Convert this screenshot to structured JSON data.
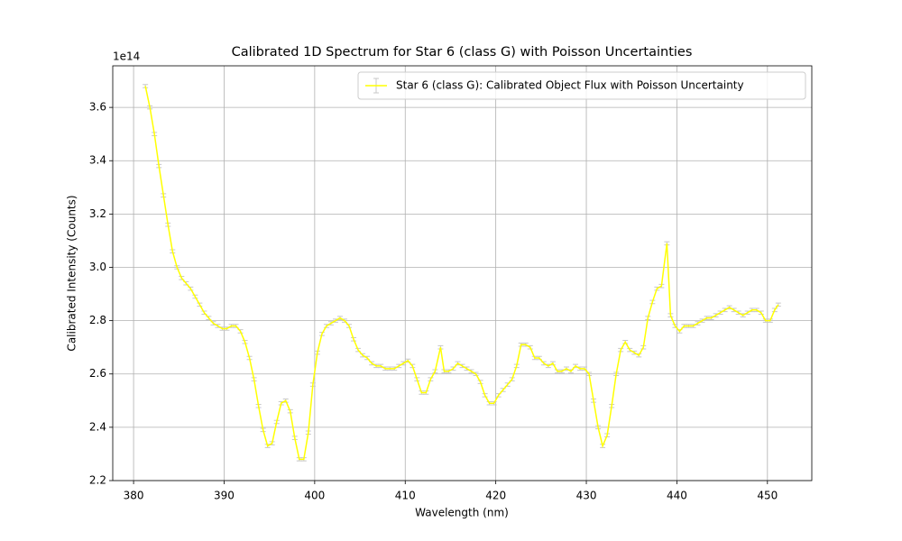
{
  "chart_data": {
    "type": "line",
    "title": "Calibrated 1D Spectrum for Star 6 (class G) with Poisson Uncertainties",
    "xlabel": "Wavelength (nm)",
    "ylabel": "Calibrated Intensity (Counts)",
    "offset_text": "1e14",
    "x": [
      381.3,
      381.8,
      382.3,
      382.8,
      383.3,
      383.8,
      384.3,
      384.8,
      385.3,
      385.8,
      386.3,
      386.8,
      387.3,
      387.8,
      388.3,
      388.8,
      389.3,
      389.8,
      390.3,
      390.8,
      391.3,
      391.8,
      392.3,
      392.8,
      393.3,
      393.8,
      394.3,
      394.8,
      395.3,
      395.8,
      396.3,
      396.8,
      397.3,
      397.8,
      398.3,
      398.8,
      399.3,
      399.8,
      400.3,
      400.8,
      401.3,
      401.8,
      402.3,
      402.8,
      403.3,
      403.8,
      404.3,
      404.8,
      405.3,
      405.8,
      406.3,
      406.8,
      407.3,
      407.8,
      408.3,
      408.8,
      409.3,
      409.8,
      410.3,
      410.8,
      411.3,
      411.8,
      412.3,
      412.8,
      413.3,
      413.9,
      414.3,
      414.8,
      415.3,
      415.8,
      416.3,
      416.8,
      417.3,
      417.8,
      418.3,
      418.8,
      419.3,
      419.8,
      420.3,
      420.8,
      421.3,
      421.8,
      422.3,
      422.8,
      423.3,
      423.8,
      424.3,
      424.8,
      425.3,
      425.8,
      426.3,
      426.8,
      427.3,
      427.8,
      428.3,
      428.8,
      429.3,
      429.8,
      430.3,
      430.8,
      431.3,
      431.8,
      432.3,
      432.8,
      433.3,
      433.8,
      434.3,
      434.8,
      435.3,
      435.8,
      436.3,
      436.8,
      437.3,
      437.8,
      438.3,
      438.9,
      439.3,
      439.8,
      440.3,
      440.8,
      441.3,
      441.8,
      442.3,
      442.8,
      443.3,
      443.8,
      444.3,
      444.8,
      445.3,
      445.8,
      446.3,
      446.8,
      447.3,
      447.8,
      448.3,
      448.8,
      449.3,
      449.8,
      450.3,
      450.8,
      451.2
    ],
    "series": [
      {
        "name": "Star 6 (class G): Calibrated Object Flux with Poisson Uncertainty",
        "color": "#ffff00",
        "error_color": "#c8c8c8",
        "values": [
          3.68,
          3.6,
          3.5,
          3.38,
          3.27,
          3.16,
          3.06,
          3.0,
          2.96,
          2.94,
          2.92,
          2.89,
          2.86,
          2.83,
          2.81,
          2.79,
          2.78,
          2.77,
          2.77,
          2.78,
          2.78,
          2.76,
          2.72,
          2.66,
          2.58,
          2.48,
          2.39,
          2.33,
          2.34,
          2.42,
          2.49,
          2.5,
          2.46,
          2.36,
          2.28,
          2.28,
          2.38,
          2.56,
          2.68,
          2.75,
          2.78,
          2.79,
          2.8,
          2.81,
          2.8,
          2.78,
          2.73,
          2.69,
          2.67,
          2.66,
          2.64,
          2.63,
          2.63,
          2.62,
          2.62,
          2.62,
          2.63,
          2.64,
          2.65,
          2.63,
          2.58,
          2.53,
          2.53,
          2.58,
          2.61,
          2.7,
          2.61,
          2.61,
          2.62,
          2.64,
          2.63,
          2.62,
          2.61,
          2.6,
          2.57,
          2.52,
          2.49,
          2.49,
          2.52,
          2.54,
          2.56,
          2.58,
          2.63,
          2.71,
          2.71,
          2.7,
          2.66,
          2.66,
          2.64,
          2.63,
          2.64,
          2.61,
          2.61,
          2.62,
          2.61,
          2.63,
          2.62,
          2.62,
          2.6,
          2.5,
          2.4,
          2.33,
          2.37,
          2.48,
          2.6,
          2.69,
          2.72,
          2.69,
          2.68,
          2.67,
          2.7,
          2.81,
          2.87,
          2.92,
          2.93,
          3.09,
          2.82,
          2.78,
          2.76,
          2.78,
          2.78,
          2.78,
          2.79,
          2.8,
          2.81,
          2.81,
          2.82,
          2.83,
          2.84,
          2.85,
          2.84,
          2.83,
          2.82,
          2.83,
          2.84,
          2.84,
          2.83,
          2.8,
          2.8,
          2.84,
          2.86
        ],
        "errors": [
          0.006,
          0.006,
          0.006,
          0.006,
          0.006,
          0.006,
          0.006,
          0.006,
          0.006,
          0.006,
          0.006,
          0.006,
          0.006,
          0.006,
          0.006,
          0.006,
          0.006,
          0.006,
          0.006,
          0.006,
          0.006,
          0.006,
          0.006,
          0.006,
          0.006,
          0.006,
          0.006,
          0.006,
          0.006,
          0.006,
          0.006,
          0.006,
          0.006,
          0.006,
          0.006,
          0.006,
          0.006,
          0.006,
          0.006,
          0.006,
          0.006,
          0.006,
          0.006,
          0.006,
          0.006,
          0.006,
          0.006,
          0.006,
          0.006,
          0.006,
          0.006,
          0.006,
          0.006,
          0.006,
          0.006,
          0.006,
          0.006,
          0.006,
          0.006,
          0.006,
          0.006,
          0.006,
          0.006,
          0.006,
          0.006,
          0.006,
          0.006,
          0.006,
          0.006,
          0.006,
          0.006,
          0.006,
          0.006,
          0.006,
          0.006,
          0.006,
          0.006,
          0.006,
          0.006,
          0.006,
          0.006,
          0.006,
          0.006,
          0.006,
          0.006,
          0.006,
          0.006,
          0.006,
          0.006,
          0.006,
          0.006,
          0.006,
          0.006,
          0.006,
          0.006,
          0.006,
          0.006,
          0.006,
          0.006,
          0.006,
          0.006,
          0.006,
          0.006,
          0.006,
          0.006,
          0.006,
          0.006,
          0.006,
          0.006,
          0.006,
          0.006,
          0.006,
          0.006,
          0.006,
          0.006,
          0.006,
          0.006,
          0.006,
          0.006,
          0.006,
          0.006,
          0.006,
          0.006,
          0.006,
          0.006,
          0.006,
          0.006,
          0.006,
          0.006,
          0.006,
          0.006,
          0.006,
          0.006,
          0.006,
          0.006,
          0.006,
          0.006,
          0.006,
          0.006,
          0.006,
          0.006
        ]
      }
    ],
    "xlim": [
      377.7,
      454.9
    ],
    "ylim": [
      2.2,
      3.756
    ],
    "xticks": [
      380,
      390,
      400,
      410,
      420,
      430,
      440,
      450
    ],
    "yticks": [
      2.2,
      2.4,
      2.6,
      2.8,
      {
        "value": 3,
        "label": "3.0"
      },
      3.2,
      3.4,
      3.6
    ],
    "grid": true,
    "legend": "upper right"
  }
}
